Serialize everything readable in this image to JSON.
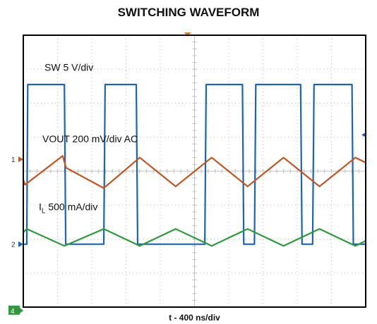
{
  "chart_data": {
    "type": "line",
    "title": "SWITCHING WAVEFORM",
    "xlabel": "t - 400 ns/div",
    "x_divisions": 10,
    "y_divisions": 8,
    "grid": true,
    "colors": {
      "sw": "#1a63b8",
      "vout": "#c2541f",
      "il": "#2f9a3d",
      "frame": "#000000",
      "grid": "#bfbfbf",
      "trigger": "#e07a2a"
    },
    "channel_markers": [
      {
        "label": "2",
        "div": 1.85,
        "color": "#1a63b8"
      },
      {
        "label": "1",
        "div": 4.35,
        "color": "#c2541f"
      },
      {
        "label": "4",
        "div": -0.1,
        "color": "#2f9a3d"
      }
    ],
    "series": [
      {
        "name": "SW  5 V/div",
        "label_div": 6.95,
        "points_div": [
          [
            0.0,
            1.85
          ],
          [
            0.1,
            1.85
          ],
          [
            0.13,
            6.55
          ],
          [
            1.2,
            6.55
          ],
          [
            1.24,
            1.85
          ],
          [
            2.35,
            1.85
          ],
          [
            2.39,
            6.55
          ],
          [
            3.3,
            6.55
          ],
          [
            3.34,
            1.85
          ],
          [
            5.3,
            1.85
          ],
          [
            5.34,
            6.55
          ],
          [
            6.4,
            6.55
          ],
          [
            6.44,
            1.85
          ],
          [
            6.75,
            1.85
          ],
          [
            6.79,
            6.55
          ],
          [
            8.1,
            6.55
          ],
          [
            8.14,
            1.85
          ],
          [
            8.45,
            1.85
          ],
          [
            8.49,
            6.55
          ],
          [
            9.6,
            6.55
          ],
          [
            9.64,
            1.85
          ],
          [
            10.0,
            1.85
          ]
        ]
      },
      {
        "name": "VOUT 200 mV/div AC",
        "label_div": 4.85,
        "points_div": [
          [
            0.0,
            3.75
          ],
          [
            0.05,
            3.6
          ],
          [
            1.15,
            4.45
          ],
          [
            1.25,
            4.1
          ],
          [
            2.35,
            3.5
          ],
          [
            3.4,
            4.4
          ],
          [
            4.45,
            3.55
          ],
          [
            5.5,
            4.4
          ],
          [
            6.55,
            3.55
          ],
          [
            7.6,
            4.4
          ],
          [
            8.65,
            3.55
          ],
          [
            9.7,
            4.4
          ],
          [
            10.0,
            4.25
          ]
        ]
      },
      {
        "name": "500 mA/div",
        "name_prefix": "I",
        "name_subscript": "L",
        "label_div": 2.85,
        "points_div": [
          [
            0.0,
            2.2
          ],
          [
            0.1,
            2.3
          ],
          [
            1.2,
            1.8
          ],
          [
            2.35,
            2.3
          ],
          [
            3.4,
            1.8
          ],
          [
            4.45,
            2.3
          ],
          [
            5.5,
            1.8
          ],
          [
            6.55,
            2.3
          ],
          [
            7.6,
            1.8
          ],
          [
            8.65,
            2.3
          ],
          [
            9.7,
            1.8
          ],
          [
            10.0,
            1.95
          ]
        ]
      }
    ]
  }
}
